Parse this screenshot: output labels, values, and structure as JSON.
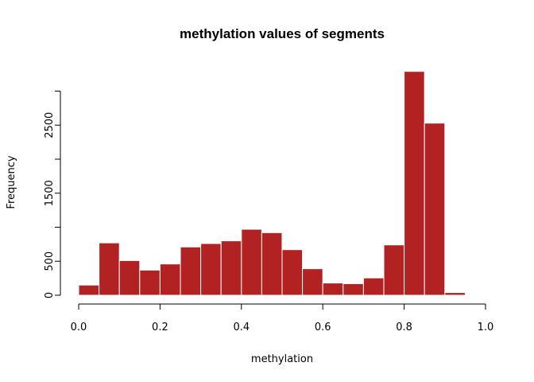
{
  "chart_data": {
    "type": "bar",
    "title": "methylation values of segments",
    "xlabel": "methylation",
    "ylabel": "Frequency",
    "bar_color": "#B22222",
    "bar_border_color": "#FFFFFF",
    "xlim": [
      0,
      1
    ],
    "ylim": [
      0,
      3000
    ],
    "bin_width": 0.05,
    "x_ticks": [
      0,
      0.2,
      0.4,
      0.6,
      0.8,
      1.0
    ],
    "x_tick_labels": [
      "0.0",
      "0.2",
      "0.4",
      "0.6",
      "0.8",
      "1.0"
    ],
    "y_ticks": [
      0,
      500,
      1000,
      1500,
      2000,
      2500,
      3000
    ],
    "y_tick_labels": [
      "0",
      "500",
      "",
      "1500",
      "",
      "2500",
      ""
    ],
    "bins": [
      [
        0.0,
        0.05
      ],
      [
        0.05,
        0.1
      ],
      [
        0.1,
        0.15
      ],
      [
        0.15,
        0.2
      ],
      [
        0.2,
        0.25
      ],
      [
        0.25,
        0.3
      ],
      [
        0.3,
        0.35
      ],
      [
        0.35,
        0.4
      ],
      [
        0.4,
        0.45
      ],
      [
        0.45,
        0.5
      ],
      [
        0.5,
        0.55
      ],
      [
        0.55,
        0.6
      ],
      [
        0.6,
        0.65
      ],
      [
        0.65,
        0.7
      ],
      [
        0.7,
        0.75
      ],
      [
        0.75,
        0.8
      ],
      [
        0.8,
        0.85
      ],
      [
        0.85,
        0.9
      ],
      [
        0.9,
        0.95
      ]
    ],
    "values": [
      150,
      770,
      510,
      370,
      460,
      710,
      760,
      800,
      970,
      920,
      670,
      390,
      180,
      170,
      255,
      740,
      3290,
      2530,
      40
    ],
    "grid": false,
    "legend": "none"
  }
}
